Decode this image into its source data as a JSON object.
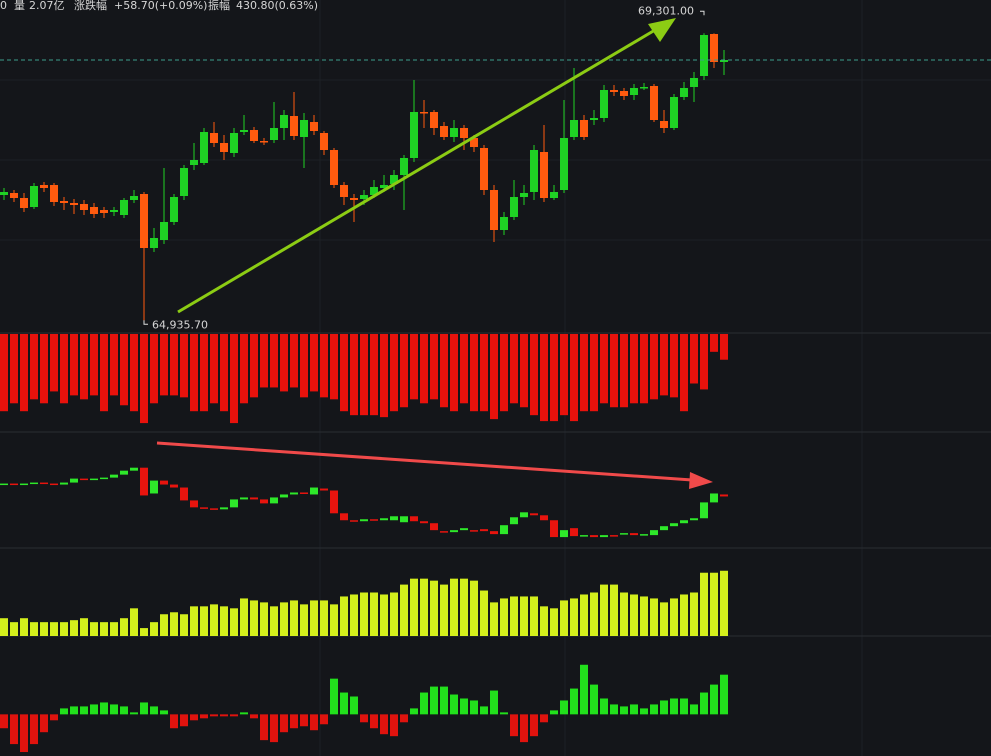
{
  "header": [
    "0",
    "量",
    "2.07亿",
    "涨跌幅",
    "+58.70(+0.09%)",
    "振幅",
    "430.80(0.63%)"
  ],
  "chart_data": [
    {
      "type": "candlestick",
      "up_color": "#1fd224",
      "down_color": "#ff5b0f",
      "ylim": [
        64820,
        69800
      ],
      "last_price_line": true,
      "annotations": [
        {
          "value": 64935.7,
          "label": "64,935.70"
        },
        {
          "value": 69301,
          "label": "69,301.00"
        }
      ],
      "open": [
        66875,
        66905,
        66830,
        66695,
        67025,
        67025,
        66785,
        66755,
        66740,
        66695,
        66650,
        66620,
        66575,
        66800,
        66890,
        66080,
        66200,
        66470,
        66860,
        67325,
        67355,
        67805,
        67655,
        67505,
        67820,
        67850,
        67685,
        67700,
        67880,
        68060,
        67745,
        67970,
        67805,
        67550,
        67025,
        66830,
        66815,
        66875,
        66980,
        67040,
        67175,
        67430,
        68120,
        68120,
        67910,
        67745,
        67880,
        67730,
        67580,
        66950,
        66350,
        66545,
        66845,
        66920,
        67520,
        66830,
        66950,
        67745,
        68000,
        68000,
        68030,
        68450,
        68435,
        68375,
        68480,
        68510,
        67985,
        67880,
        68345,
        68495,
        68660,
        69290,
        68870
      ],
      "close": [
        66920,
        66830,
        66680,
        67010,
        66980,
        66770,
        66755,
        66725,
        66650,
        66590,
        66605,
        66650,
        66800,
        66860,
        66080,
        66230,
        66470,
        66845,
        67280,
        67400,
        67820,
        67655,
        67520,
        67805,
        67850,
        67685,
        67670,
        67880,
        68075,
        67760,
        68000,
        67835,
        67550,
        67025,
        66845,
        66800,
        66875,
        66995,
        67025,
        67175,
        67430,
        68120,
        68105,
        67880,
        67745,
        67880,
        67730,
        67595,
        66950,
        66350,
        66545,
        66845,
        66905,
        67550,
        66830,
        66920,
        67730,
        68000,
        67745,
        68030,
        68450,
        68420,
        68360,
        68480,
        68495,
        68000,
        67880,
        68345,
        68480,
        68630,
        69275,
        68870,
        68900
      ],
      "high": [
        66980,
        66950,
        66905,
        67055,
        67070,
        67055,
        66845,
        66815,
        66800,
        66755,
        66695,
        66695,
        66830,
        66950,
        66920,
        66380,
        67280,
        66890,
        67325,
        67655,
        67880,
        67970,
        67775,
        67880,
        68075,
        67895,
        67730,
        68270,
        68150,
        68420,
        68105,
        68075,
        67835,
        67580,
        67070,
        66890,
        66950,
        67100,
        67175,
        67250,
        67475,
        68600,
        68300,
        68150,
        67970,
        68000,
        67925,
        67775,
        67625,
        67025,
        66620,
        67100,
        67025,
        67625,
        67925,
        67025,
        68300,
        68780,
        68075,
        68150,
        68525,
        68525,
        68480,
        68540,
        68555,
        68540,
        68150,
        68390,
        68570,
        68720,
        69301,
        69300,
        69050
      ],
      "low": [
        66800,
        66770,
        66620,
        66665,
        66920,
        66710,
        66650,
        66590,
        66575,
        66530,
        66530,
        66560,
        66530,
        66755,
        64935.7,
        66020,
        66140,
        66425,
        66800,
        67250,
        67325,
        67595,
        67400,
        67445,
        67775,
        67655,
        67625,
        67655,
        67700,
        67700,
        67280,
        67775,
        67475,
        66980,
        66725,
        66470,
        66725,
        66830,
        66920,
        66950,
        66650,
        67370,
        67880,
        67775,
        67700,
        67670,
        67550,
        67520,
        66875,
        66170,
        66275,
        66500,
        66725,
        66800,
        66770,
        66800,
        66905,
        67700,
        67700,
        67925,
        67970,
        68360,
        68300,
        68300,
        68450,
        67970,
        67805,
        67850,
        68300,
        68270,
        68600,
        68780,
        68675
      ]
    },
    {
      "type": "bar",
      "color": "#e8120c",
      "ylim": [
        -99,
        0
      ],
      "values": [
        -78,
        -70,
        -78,
        -66,
        -70,
        -58,
        -70,
        -62,
        -66,
        -62,
        -78,
        -62,
        -72,
        -78,
        -90,
        -70,
        -62,
        -62,
        -64,
        -78,
        -78,
        -70,
        -78,
        -90,
        -70,
        -64,
        -54,
        -54,
        -58,
        -54,
        -64,
        -58,
        -64,
        -66,
        -78,
        -82,
        -82,
        -82,
        -84,
        -78,
        -74,
        -66,
        -70,
        -66,
        -74,
        -78,
        -70,
        -78,
        -78,
        -86,
        -78,
        -70,
        -74,
        -82,
        -88,
        -88,
        -82,
        -88,
        -78,
        -78,
        -70,
        -74,
        -74,
        -70,
        -70,
        -66,
        -62,
        -64,
        -78,
        -50,
        -56,
        -18,
        -26
      ]
    },
    {
      "type": "candlestick",
      "up_color": "#2ee82a",
      "down_color": "#e8140e",
      "ylim": [
        0,
        116
      ],
      "open": [
        64,
        65,
        64,
        65,
        66,
        65,
        64,
        66,
        70,
        69,
        70,
        71,
        74,
        78,
        81,
        55,
        68,
        64,
        61,
        48,
        41,
        40,
        39,
        41,
        49,
        51,
        49,
        45,
        51,
        54,
        56,
        54,
        60,
        58,
        35,
        28,
        27,
        29,
        28,
        28,
        26,
        32,
        27,
        25,
        17,
        16,
        18,
        18,
        19,
        17,
        14,
        24,
        31,
        35,
        33,
        28,
        11,
        20,
        12,
        13,
        11,
        13,
        14,
        15,
        13,
        13,
        18,
        22,
        25,
        28,
        30,
        46,
        54
      ],
      "close": [
        65,
        64,
        65,
        66,
        65,
        64,
        66,
        70,
        69,
        70,
        71,
        74,
        78,
        81,
        53,
        68,
        64,
        61,
        48,
        41,
        40,
        39,
        41,
        49,
        51,
        49,
        45,
        51,
        54,
        56,
        55,
        61,
        58,
        35,
        28,
        27,
        29,
        28,
        30,
        32,
        32,
        27,
        25,
        18,
        16,
        18,
        20,
        17,
        17,
        14,
        23,
        31,
        36,
        33,
        28,
        11,
        18,
        12,
        13,
        11,
        13,
        12,
        15,
        13,
        14,
        18,
        22,
        25,
        28,
        30,
        46,
        55,
        52
      ]
    },
    {
      "type": "bar",
      "color": "#d4ef1c",
      "ylim": [
        0,
        88
      ],
      "values": [
        18,
        14,
        18,
        14,
        14,
        14,
        14,
        16,
        18,
        14,
        14,
        14,
        18,
        28,
        8,
        14,
        22,
        24,
        22,
        30,
        30,
        32,
        30,
        28,
        38,
        36,
        34,
        30,
        34,
        36,
        32,
        36,
        36,
        32,
        40,
        42,
        44,
        44,
        42,
        44,
        52,
        58,
        58,
        56,
        52,
        58,
        58,
        56,
        46,
        34,
        38,
        40,
        40,
        40,
        30,
        28,
        36,
        38,
        42,
        44,
        52,
        52,
        44,
        42,
        40,
        38,
        34,
        38,
        42,
        44,
        64,
        64,
        66
      ]
    },
    {
      "type": "bar",
      "up_color": "#22e01c",
      "down_color": "#e0130e",
      "ylim": [
        -42,
        78
      ],
      "values": [
        -14,
        -30,
        -38,
        -30,
        -18,
        -6,
        6,
        8,
        8,
        10,
        12,
        10,
        8,
        2,
        12,
        8,
        4,
        -14,
        -12,
        -6,
        -4,
        -2,
        -2,
        -2,
        2,
        -4,
        -26,
        -28,
        -18,
        -14,
        -12,
        -16,
        -10,
        36,
        22,
        18,
        -8,
        -14,
        -20,
        -22,
        -8,
        6,
        22,
        28,
        28,
        20,
        16,
        14,
        8,
        24,
        2,
        -22,
        -28,
        -22,
        -8,
        4,
        14,
        26,
        50,
        30,
        16,
        10,
        8,
        10,
        6,
        10,
        14,
        16,
        16,
        10,
        22,
        30,
        40
      ]
    }
  ]
}
